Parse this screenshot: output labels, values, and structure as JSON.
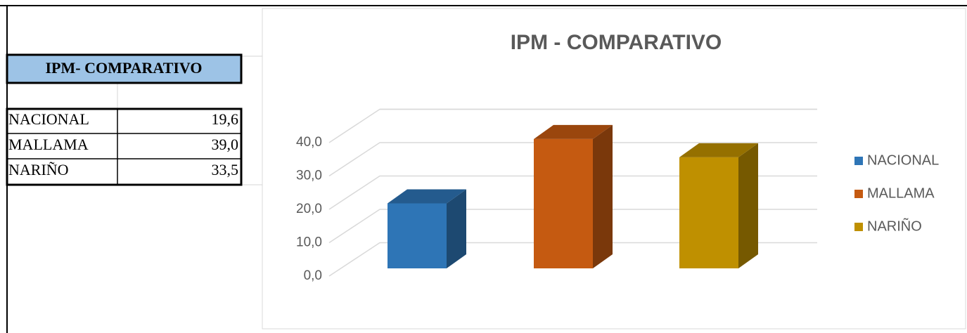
{
  "table": {
    "title": "IPM- COMPARATIVO",
    "rows": [
      [
        "NACIONAL",
        "19,6"
      ],
      [
        "MALLAMA",
        "39,0"
      ],
      [
        "NARIÑO",
        "33,5"
      ]
    ]
  },
  "chart_data": {
    "type": "bar3d",
    "title": "IPM - COMPARATIVO",
    "categories": [
      "NACIONAL",
      "MALLAMA",
      "NARIÑO"
    ],
    "series": [
      {
        "name": "NACIONAL",
        "color": "#2e75b6",
        "values": [
          19.6,
          null,
          null
        ]
      },
      {
        "name": "MALLAMA",
        "color": "#c55a11",
        "values": [
          null,
          39.0,
          null
        ]
      },
      {
        "name": "NARIÑO",
        "color": "#bf9000",
        "values": [
          null,
          null,
          33.5
        ]
      }
    ],
    "ylim": [
      0,
      50
    ],
    "yticks": [
      {
        "value": 0,
        "label": "0,0"
      },
      {
        "value": 10,
        "label": "10,0"
      },
      {
        "value": 20,
        "label": "20,0"
      },
      {
        "value": 30,
        "label": "30,0"
      },
      {
        "value": 40,
        "label": "40,0"
      }
    ],
    "grid": true,
    "legend": "right"
  }
}
